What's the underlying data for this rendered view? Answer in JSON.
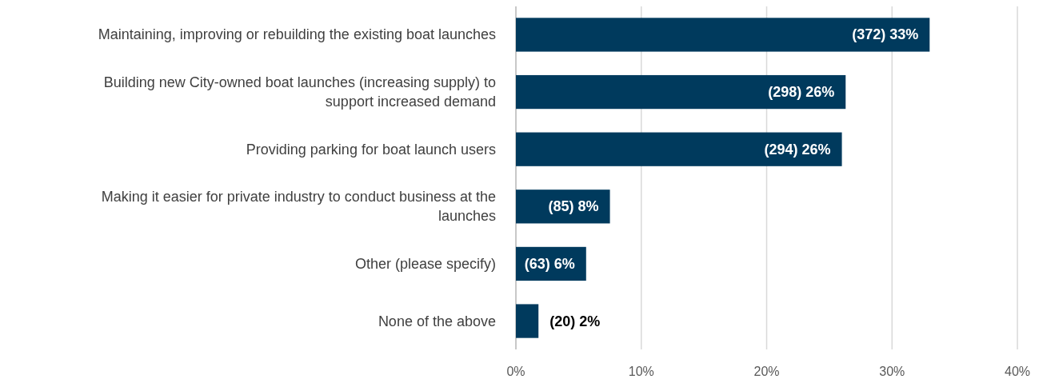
{
  "chart_data": {
    "type": "bar",
    "orientation": "horizontal",
    "categories": [
      "Maintaining, improving or rebuilding the existing boat launches",
      "Building new City-owned boat launches (increasing supply) to support increased demand",
      "Providing parking for boat launch users",
      "Making it easier for private industry to conduct business at the launches",
      "Other (please specify)",
      "None of the above"
    ],
    "values": [
      33,
      26.3,
      26,
      7.5,
      5.6,
      1.8
    ],
    "value_labels": [
      "(372) 33%",
      "(298) 26%",
      "(294) 26%",
      "(85) 8%",
      "(63) 6%",
      "(20) 2%"
    ],
    "color": "#003a5d",
    "xlim": [
      0,
      40
    ],
    "xticks": [
      {
        "value": 0,
        "label": "0%"
      },
      {
        "value": 10,
        "label": "10%"
      },
      {
        "value": 20,
        "label": "20%"
      },
      {
        "value": 30,
        "label": "30%"
      },
      {
        "value": 40,
        "label": "40%"
      }
    ],
    "grid": "x",
    "legend": false
  }
}
